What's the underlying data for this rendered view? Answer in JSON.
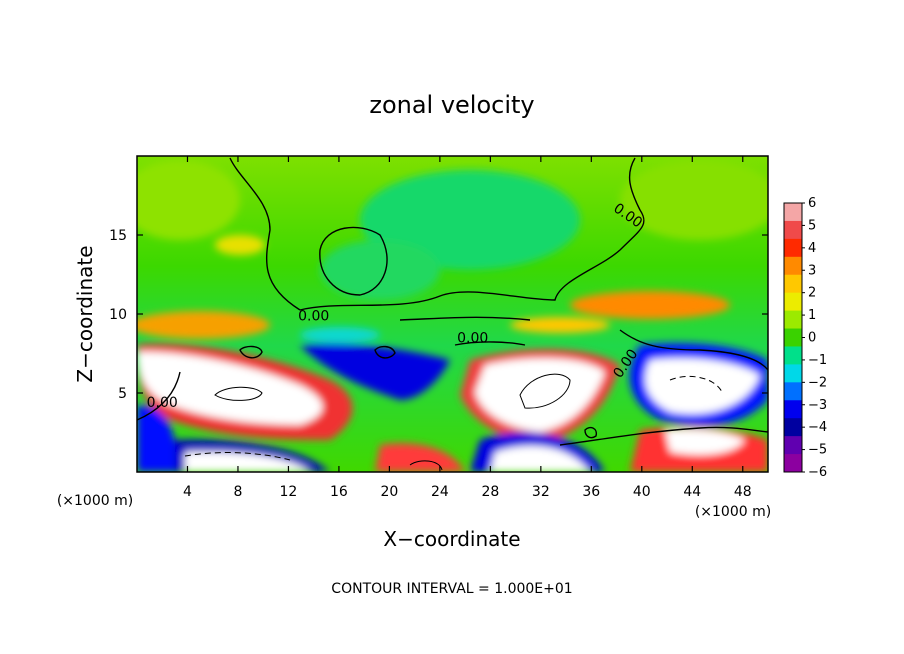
{
  "chart_data": {
    "type": "heatmap",
    "title": "zonal velocity",
    "xlabel": "X−coordinate",
    "ylabel": "Z−coordinate",
    "x_unit_note": "(×1000 m)",
    "y_unit_note": "(×1000 m)",
    "footer": "CONTOUR INTERVAL = 1.000E+01",
    "xlim": [
      0,
      50
    ],
    "ylim": [
      0,
      20
    ],
    "x_ticks": [
      4,
      8,
      12,
      16,
      20,
      24,
      28,
      32,
      36,
      40,
      44,
      48
    ],
    "y_ticks": [
      5,
      10,
      15
    ],
    "colorbar": {
      "min": -6,
      "max": 6,
      "ticks": [
        6,
        5,
        4,
        3,
        2,
        1,
        0,
        -1,
        -2,
        -3,
        -4,
        -5,
        -6
      ],
      "colors": [
        "#f4a6a6",
        "#f04a4a",
        "#ff2a00",
        "#ff8a00",
        "#ffc800",
        "#ecec00",
        "#9cea00",
        "#3ad200",
        "#00e08a",
        "#00d8e8",
        "#0070ff",
        "#0000ee",
        "#0000a0",
        "#6000b0",
        "#8c00a0"
      ]
    },
    "contour_labels": [
      {
        "text": "0.00",
        "x": 2.0,
        "y": 4.1,
        "angle": 0
      },
      {
        "text": "0.00",
        "x": 14.0,
        "y": 9.6,
        "angle": 0
      },
      {
        "text": "0.00",
        "x": 26.6,
        "y": 8.2,
        "angle": 0
      },
      {
        "text": "0.00",
        "x": 38.7,
        "y": 16.0,
        "angle": 35
      },
      {
        "text": "0.00",
        "x": 39.0,
        "y": 6.7,
        "angle": -55
      }
    ]
  }
}
